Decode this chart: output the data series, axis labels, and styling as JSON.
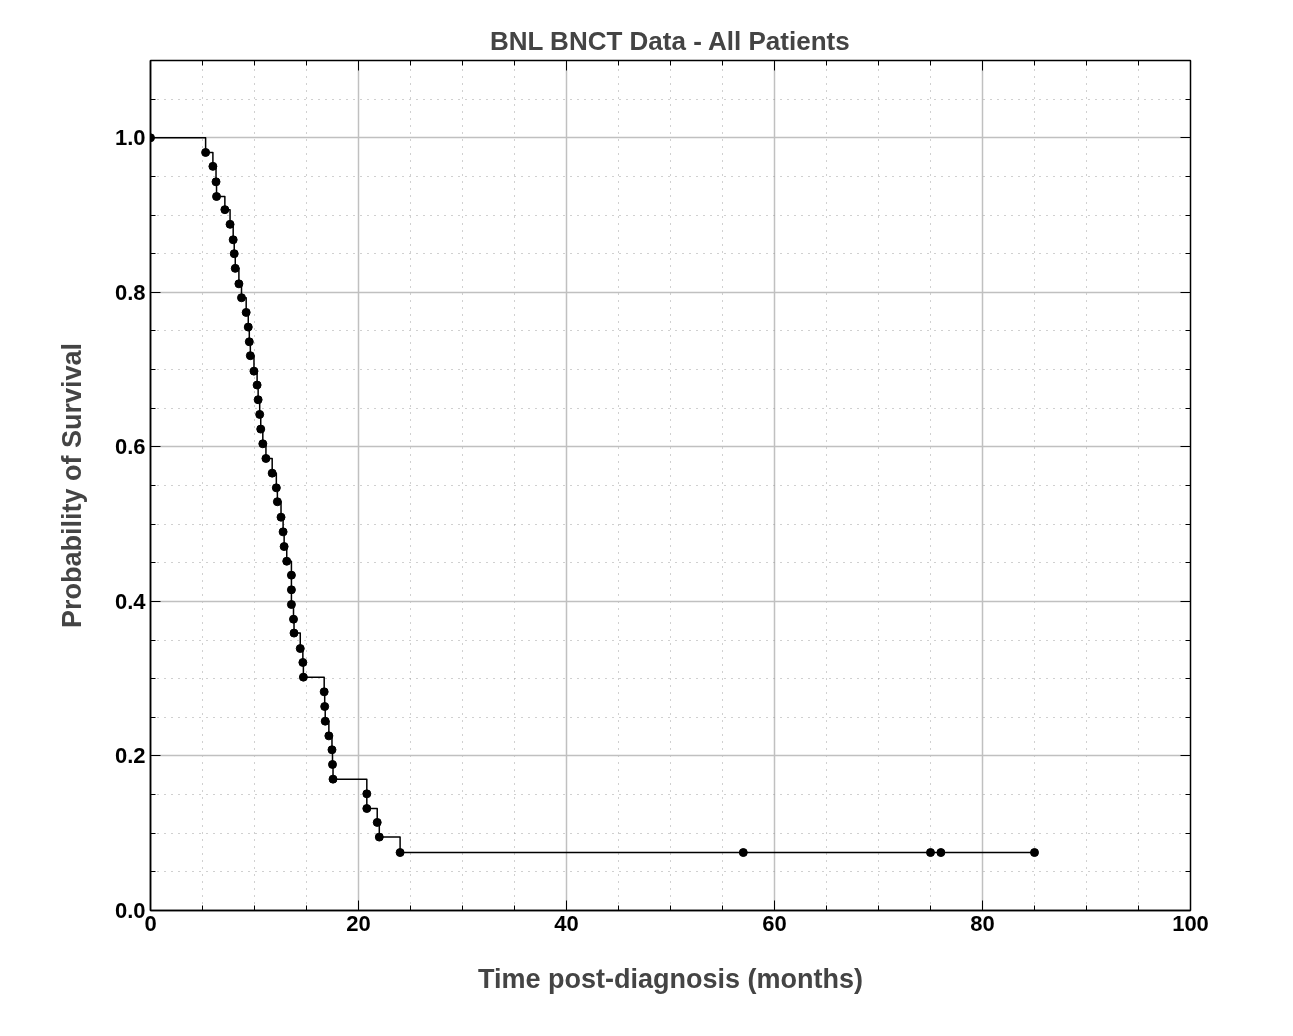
{
  "chart_data": {
    "type": "step",
    "title": "BNL BNCT Data - All Patients",
    "xlabel": "Time post-diagnosis (months)",
    "ylabel": "Probability of Survival",
    "xlim": [
      0,
      100
    ],
    "ylim": [
      0,
      1.1
    ],
    "xticks": [
      0,
      20,
      40,
      60,
      80,
      100
    ],
    "yticks": [
      {
        "value": 0,
        "label": "0.0"
      },
      0.2,
      0.4,
      0.6,
      0.8,
      {
        "value": 1,
        "label": "1.0"
      }
    ],
    "grid": true,
    "marker": "circle",
    "line_style": "solid",
    "series": [
      {
        "color": "#000000",
        "x": [
          0,
          5.3,
          6.0,
          6.3,
          6.35,
          7.15,
          7.65,
          7.95,
          8.05,
          8.15,
          8.5,
          8.75,
          9.2,
          9.4,
          9.5,
          9.6,
          9.95,
          10.25,
          10.35,
          10.5,
          10.6,
          10.8,
          11.1,
          11.7,
          12.1,
          12.2,
          12.55,
          12.75,
          12.85,
          13.1,
          13.55,
          13.55,
          13.55,
          13.75,
          13.8,
          14.4,
          14.65,
          14.7,
          16.7,
          16.75,
          16.8,
          17.15,
          17.45,
          17.5,
          17.55,
          20.8,
          20.8,
          21.8,
          22.0,
          24.0,
          57,
          75,
          76,
          85
        ],
        "values": [
          1.0,
          0.981,
          0.963,
          0.943,
          0.924,
          0.907,
          0.888,
          0.868,
          0.85,
          0.831,
          0.811,
          0.793,
          0.774,
          0.755,
          0.736,
          0.718,
          0.698,
          0.68,
          0.661,
          0.642,
          0.623,
          0.604,
          0.585,
          0.566,
          0.547,
          0.529,
          0.509,
          0.49,
          0.471,
          0.452,
          0.434,
          0.415,
          0.396,
          0.377,
          0.359,
          0.339,
          0.321,
          0.302,
          0.283,
          0.264,
          0.245,
          0.226,
          0.208,
          0.189,
          0.17,
          0.151,
          0.132,
          0.114,
          0.095,
          0.075,
          0.075,
          0.075,
          0.075,
          0.075
        ]
      }
    ]
  }
}
